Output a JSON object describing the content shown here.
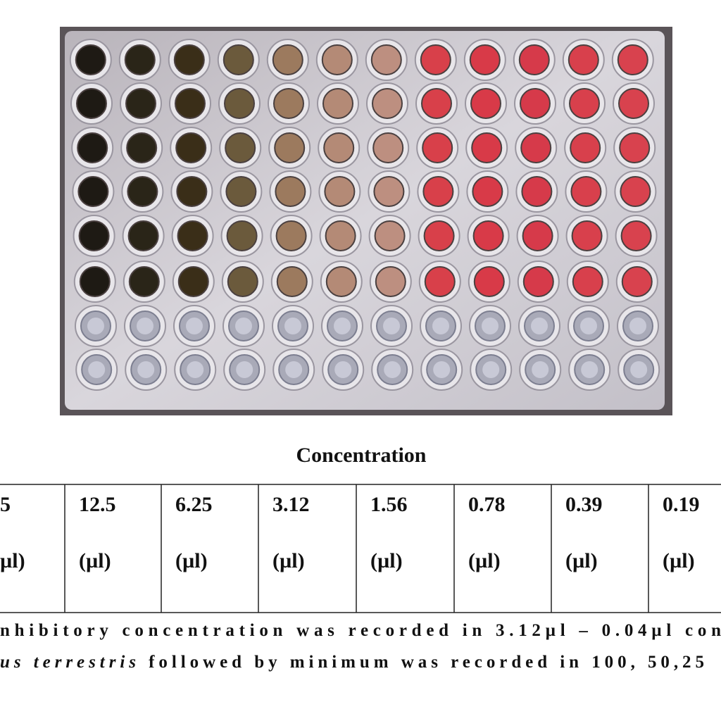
{
  "heading": "Concentration",
  "table": {
    "cells": [
      {
        "value": "5",
        "unit": "µl)"
      },
      {
        "value": "12.5",
        "unit": "(µl)"
      },
      {
        "value": "6.25",
        "unit": "(µl)"
      },
      {
        "value": "3.12",
        "unit": "(µl)"
      },
      {
        "value": "1.56",
        "unit": "(µl)"
      },
      {
        "value": "0.78",
        "unit": "(µl)"
      },
      {
        "value": "0.39",
        "unit": "(µl)"
      },
      {
        "value": "0.19",
        "unit": "(µl)"
      }
    ]
  },
  "caption": {
    "line1": "nhibitory concentration was recorded in 3.12µl – 0.04µl con",
    "line2": {
      "italic": "us terrestris",
      "rest": " followed by minimum was recorded in 100, 50,25"
    }
  }
}
